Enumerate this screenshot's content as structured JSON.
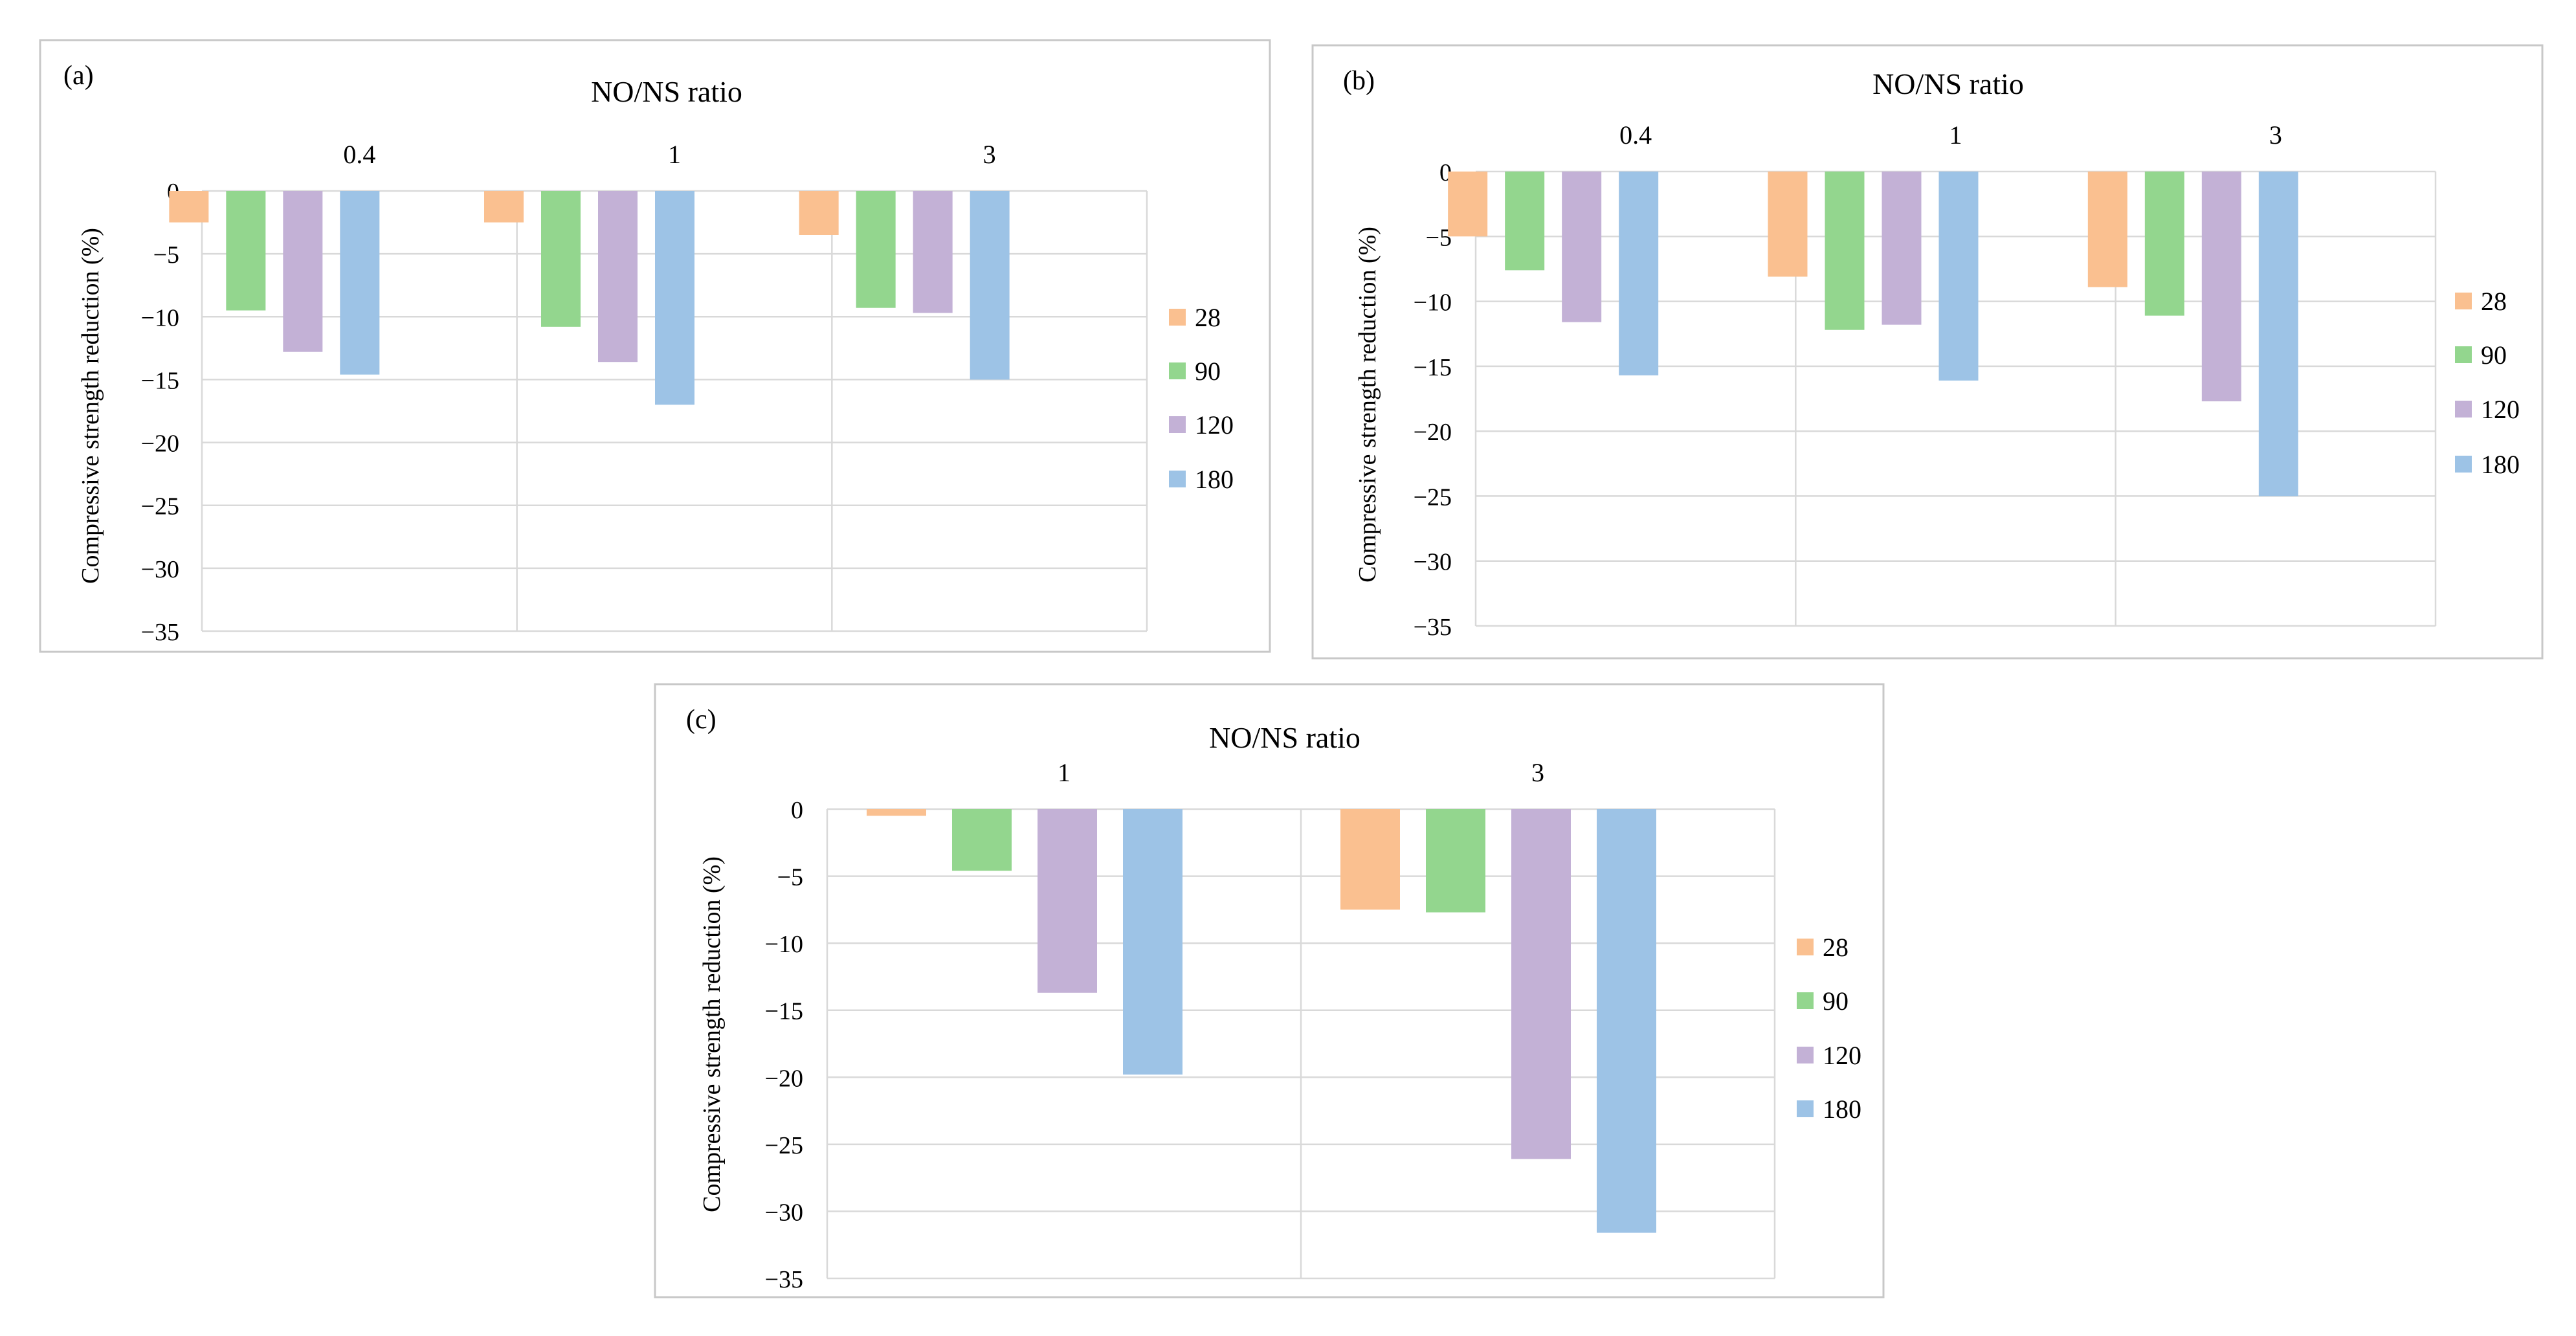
{
  "colors": {
    "28": "#FAC090",
    "90": "#93D68E",
    "120": "#C3B1D6",
    "180": "#9DC3E6"
  },
  "series_names": [
    "28",
    "90",
    "120",
    "180"
  ],
  "chart_data": [
    {
      "panel": "(a)",
      "type": "bar",
      "title": "NO/NS ratio",
      "ylabel": "Compressive strength reduction (%)",
      "categories": [
        "0.4",
        "1",
        "3"
      ],
      "yticks": [
        "0",
        "−5",
        "−10",
        "−15",
        "−20",
        "−25",
        "−30",
        "−35"
      ],
      "ylim": [
        -35,
        0
      ],
      "legend": "right",
      "series": [
        {
          "name": "28",
          "values": [
            -2.5,
            -2.5,
            -3.5
          ]
        },
        {
          "name": "90",
          "values": [
            -9.5,
            -10.8,
            -9.3
          ]
        },
        {
          "name": "120",
          "values": [
            -12.8,
            -13.6,
            -9.7
          ]
        },
        {
          "name": "180",
          "values": [
            -14.6,
            -17.0,
            -15.0
          ]
        }
      ]
    },
    {
      "panel": "(b)",
      "type": "bar",
      "title": "NO/NS ratio",
      "ylabel": "Compressive strength reduction (%)",
      "categories": [
        "0.4",
        "1",
        "3"
      ],
      "yticks": [
        "0",
        "−5",
        "−10",
        "−15",
        "−20",
        "−25",
        "−30",
        "−35"
      ],
      "ylim": [
        -35,
        0
      ],
      "legend": "right",
      "series": [
        {
          "name": "28",
          "values": [
            -5.0,
            -8.1,
            -8.9
          ]
        },
        {
          "name": "90",
          "values": [
            -7.6,
            -12.2,
            -11.1
          ]
        },
        {
          "name": "120",
          "values": [
            -11.6,
            -11.8,
            -17.7
          ]
        },
        {
          "name": "180",
          "values": [
            -15.7,
            -16.1,
            -25.0
          ]
        }
      ]
    },
    {
      "panel": "(c)",
      "type": "bar",
      "title": "NO/NS ratio",
      "ylabel": "Compressive strength reduction (%)",
      "categories": [
        "1",
        "3"
      ],
      "yticks": [
        "0",
        "−5",
        "−10",
        "−15",
        "−20",
        "−25",
        "−30",
        "−35"
      ],
      "ylim": [
        -35,
        0
      ],
      "legend": "right",
      "series": [
        {
          "name": "28",
          "values": [
            -0.5,
            -7.5
          ]
        },
        {
          "name": "90",
          "values": [
            -4.6,
            -7.7
          ]
        },
        {
          "name": "120",
          "values": [
            -13.7,
            -26.1
          ]
        },
        {
          "name": "180",
          "values": [
            -19.8,
            -31.6
          ]
        }
      ]
    }
  ]
}
